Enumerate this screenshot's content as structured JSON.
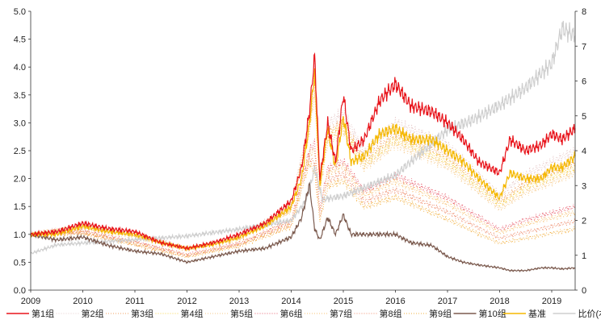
{
  "chart_data": {
    "type": "line",
    "title": "",
    "xlabel": "",
    "ylabel": "",
    "y2label": "",
    "xlim": [
      2009,
      2019.45
    ],
    "ylim": [
      0,
      5
    ],
    "y2lim": [
      0,
      8
    ],
    "x_ticks": [
      "2009",
      "2010",
      "2011",
      "2012",
      "2013",
      "2014",
      "2015",
      "2016",
      "2017",
      "2018",
      "2019"
    ],
    "y_ticks": [
      "0.0",
      "0.5",
      "1.0",
      "1.5",
      "2.0",
      "2.5",
      "3.0",
      "3.5",
      "4.0",
      "4.5",
      "5.0"
    ],
    "y2_ticks": [
      "0",
      "1",
      "2",
      "3",
      "4",
      "5",
      "6",
      "7",
      "8"
    ],
    "legend_position": "bottom",
    "x_main": [
      2009,
      2009.5,
      2010,
      2010.5,
      2011,
      2011.5,
      2012,
      2012.5,
      2013,
      2013.5,
      2014,
      2014.2,
      2014.35,
      2014.45,
      2014.55,
      2014.7,
      2014.85,
      2015.0,
      2015.15,
      2015.4,
      2015.7,
      2016.0,
      2016.3,
      2016.7,
      2017.0,
      2017.3,
      2017.6,
      2018.0,
      2018.2,
      2018.5,
      2018.8,
      2019.0,
      2019.2,
      2019.45
    ],
    "x_sub": [
      2009,
      2010,
      2011,
      2012,
      2013,
      2014,
      2014.35,
      2014.45,
      2014.55,
      2014.7,
      2015.0,
      2015.4,
      2016.0,
      2017.0,
      2018.0,
      2018.5,
      2019.45
    ],
    "x_ratio": [
      2009,
      2009.5,
      2010,
      2011,
      2012,
      2013,
      2014,
      2014.3,
      2014.45,
      2014.6,
      2015,
      2015.5,
      2016,
      2017,
      2017.5,
      2018,
      2018.5,
      2019,
      2019.2,
      2019.45
    ],
    "series": [
      {
        "name": "第2组",
        "x": "x_sub",
        "axis": "left",
        "color": "#e6c9c9",
        "dash": "1,2",
        "values": [
          1.0,
          1.16,
          1.02,
          0.76,
          0.96,
          1.53,
          3.06,
          4.04,
          1.95,
          2.98,
          3.19,
          2.47,
          3.0,
          2.6,
          1.71,
          2.08,
          2.5
        ]
      },
      {
        "name": "第3组",
        "x": "x_sub",
        "axis": "left",
        "color": "#f0a060",
        "dash": "1,2",
        "values": [
          1.0,
          1.14,
          0.99,
          0.74,
          0.94,
          1.47,
          2.95,
          3.76,
          1.85,
          2.82,
          3.01,
          2.33,
          2.81,
          2.41,
          1.59,
          1.92,
          2.3
        ]
      },
      {
        "name": "第4组",
        "x": "x_sub",
        "axis": "left",
        "color": "#f7d24a",
        "dash": "1,2",
        "values": [
          1.0,
          1.13,
          0.97,
          0.73,
          0.93,
          1.45,
          2.89,
          3.62,
          1.8,
          2.74,
          2.93,
          2.26,
          2.71,
          2.31,
          1.53,
          1.84,
          2.2
        ]
      },
      {
        "name": "第5组",
        "x": "x_sub",
        "axis": "left",
        "color": "#f6c98a",
        "dash": "1,2",
        "values": [
          1.0,
          1.12,
          0.96,
          0.71,
          0.91,
          1.42,
          2.84,
          3.48,
          1.75,
          2.66,
          2.84,
          2.19,
          2.62,
          2.22,
          1.46,
          1.75,
          2.1
        ]
      },
      {
        "name": "第6组",
        "x": "x_sub",
        "axis": "left",
        "color": "#e85a6a",
        "dash": "1,2",
        "values": [
          1.0,
          1.06,
          0.87,
          0.64,
          0.84,
          1.25,
          2.5,
          2.64,
          1.45,
          2.18,
          2.31,
          1.77,
          2.05,
          1.65,
          1.09,
          1.26,
          1.5
        ]
      },
      {
        "name": "第7组",
        "x": "x_sub",
        "axis": "left",
        "color": "#f7c070",
        "dash": "1,2",
        "values": [
          1.0,
          1.05,
          0.85,
          0.63,
          0.83,
          1.23,
          2.45,
          2.5,
          1.4,
          2.1,
          2.23,
          1.7,
          1.95,
          1.55,
          1.03,
          1.18,
          1.4
        ]
      },
      {
        "name": "第8组",
        "x": "x_sub",
        "axis": "left",
        "color": "#ee8a6a",
        "dash": "1,2",
        "values": [
          1.0,
          1.03,
          0.83,
          0.61,
          0.81,
          1.18,
          2.36,
          2.28,
          1.32,
          1.97,
          2.09,
          1.59,
          1.8,
          1.4,
          0.93,
          1.04,
          1.24
        ]
      },
      {
        "name": "第9组",
        "x": "x_sub",
        "axis": "left",
        "color": "#f2b040",
        "dash": "1,2",
        "values": [
          1.0,
          1.02,
          0.81,
          0.59,
          0.79,
          1.14,
          2.29,
          2.08,
          1.25,
          1.86,
          1.96,
          1.49,
          1.67,
          1.27,
          0.84,
          0.93,
          1.1
        ]
      },
      {
        "name": "比价(右轴)",
        "x": "x_ratio",
        "axis": "right",
        "color": "#cfcfcf",
        "dash": "",
        "values": [
          1.05,
          1.3,
          1.35,
          1.45,
          1.55,
          1.75,
          2.0,
          2.6,
          3.5,
          2.6,
          2.7,
          3.0,
          3.3,
          4.6,
          4.9,
          5.3,
          5.8,
          6.5,
          7.5,
          7.3
        ]
      },
      {
        "name": "第10组",
        "x": "x_main",
        "axis": "left",
        "color": "#7b5a4e",
        "dash": "",
        "values": [
          1.0,
          0.9,
          0.95,
          0.8,
          0.7,
          0.65,
          0.5,
          0.6,
          0.7,
          0.75,
          0.95,
          1.3,
          1.9,
          1.1,
          0.9,
          1.3,
          1.0,
          1.35,
          1.0,
          1.0,
          1.0,
          1.0,
          0.85,
          0.8,
          0.6,
          0.5,
          0.45,
          0.4,
          0.35,
          0.35,
          0.4,
          0.4,
          0.38,
          0.4
        ]
      },
      {
        "name": "基准",
        "x": "x_main",
        "axis": "left",
        "color": "#f5b800",
        "dash": "",
        "values": [
          1.0,
          1.0,
          1.15,
          1.05,
          1.0,
          0.85,
          0.75,
          0.82,
          0.95,
          1.15,
          1.5,
          2.0,
          3.0,
          3.9,
          1.9,
          2.9,
          2.2,
          3.1,
          2.3,
          2.4,
          2.8,
          2.9,
          2.7,
          2.7,
          2.5,
          2.3,
          2.0,
          1.65,
          2.1,
          2.0,
          2.0,
          2.2,
          2.2,
          2.4
        ]
      },
      {
        "name": "第1组",
        "x": "x_main",
        "axis": "left",
        "color": "#e8141b",
        "dash": "",
        "values": [
          1.0,
          1.05,
          1.2,
          1.1,
          1.05,
          0.85,
          0.75,
          0.85,
          1.0,
          1.2,
          1.6,
          2.2,
          3.2,
          4.2,
          2.0,
          3.0,
          2.3,
          3.5,
          2.5,
          2.7,
          3.4,
          3.7,
          3.3,
          3.2,
          3.0,
          2.7,
          2.3,
          2.1,
          2.7,
          2.5,
          2.6,
          2.8,
          2.7,
          2.9
        ]
      }
    ],
    "legend": [
      {
        "name": "第1组",
        "color": "#e8141b",
        "dash": ""
      },
      {
        "name": "第2组",
        "color": "#e6c9c9",
        "dash": "1,2"
      },
      {
        "name": "第3组",
        "color": "#f0a060",
        "dash": "1,2"
      },
      {
        "name": "第4组",
        "color": "#f7d24a",
        "dash": "1,2"
      },
      {
        "name": "第5组",
        "color": "#f6c98a",
        "dash": "1,2"
      },
      {
        "name": "第6组",
        "color": "#e85a6a",
        "dash": "1,2"
      },
      {
        "name": "第7组",
        "color": "#f7c070",
        "dash": "1,2"
      },
      {
        "name": "第8组",
        "color": "#ee8a6a",
        "dash": "1,2"
      },
      {
        "name": "第9组",
        "color": "#f2b040",
        "dash": "1,2"
      },
      {
        "name": "第10组",
        "color": "#7b5a4e",
        "dash": ""
      },
      {
        "name": "基准",
        "color": "#f5b800",
        "dash": ""
      },
      {
        "name": "比价(右轴)",
        "color": "#cfcfcf",
        "dash": ""
      }
    ]
  }
}
